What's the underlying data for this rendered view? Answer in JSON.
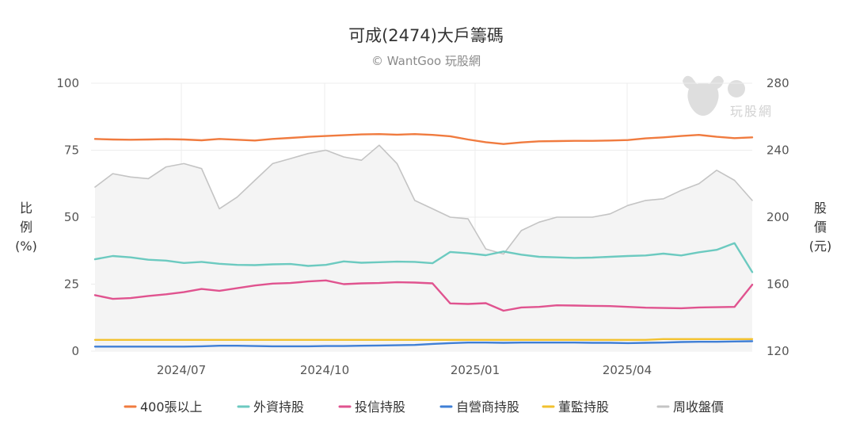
{
  "chart_data": {
    "type": "line",
    "title": "可成(2474)大戶籌碼",
    "subtitle": "© WantGoo 玩股網",
    "watermark": "玩股網",
    "x_tick_labels": [
      "2024/07",
      "2024/10",
      "2025/01",
      "2025/04"
    ],
    "y_left": {
      "label": "比例 (%)",
      "label_chars": [
        "比",
        "例",
        "(%)"
      ],
      "ticks": [
        "100",
        "75",
        "50",
        "25",
        "0"
      ],
      "range": [
        0,
        100
      ]
    },
    "y_right": {
      "label": "股價 (元)",
      "label_chars": [
        "股",
        "價",
        "(元)"
      ],
      "ticks": [
        "280",
        "240",
        "200",
        "160",
        "120"
      ],
      "range": [
        120,
        280
      ]
    },
    "grid": true,
    "legend_position": "bottom",
    "period": [
      "2024-05",
      "2025-06"
    ],
    "series": [
      {
        "name": "400張以上",
        "color": "#f07b3f",
        "axis": "left",
        "values": [
          79.2,
          79.0,
          78.9,
          79.0,
          79.1,
          79.0,
          78.7,
          79.2,
          78.9,
          78.6,
          79.2,
          79.6,
          80.0,
          80.3,
          80.6,
          80.9,
          81.0,
          80.8,
          81.0,
          80.7,
          80.2,
          79.0,
          78.0,
          77.3,
          77.9,
          78.3,
          78.4,
          78.5,
          78.5,
          78.6,
          78.8,
          79.4,
          79.8,
          80.3,
          80.7,
          80.0,
          79.5,
          79.8
        ]
      },
      {
        "name": "外資持股",
        "color": "#6ccac0",
        "axis": "left",
        "values": [
          34.3,
          35.5,
          35.0,
          34.1,
          33.8,
          32.9,
          33.3,
          32.6,
          32.2,
          32.1,
          32.4,
          32.5,
          31.8,
          32.2,
          33.5,
          33.0,
          33.2,
          33.4,
          33.3,
          32.8,
          37.0,
          36.5,
          35.8,
          37.2,
          36.0,
          35.2,
          35.0,
          34.8,
          34.9,
          35.2,
          35.5,
          35.7,
          36.4,
          35.7,
          36.9,
          37.8,
          40.3,
          29.5
        ]
      },
      {
        "name": "投信持股",
        "color": "#e0538f",
        "axis": "left",
        "values": [
          20.9,
          19.5,
          19.8,
          20.6,
          21.2,
          22.0,
          23.2,
          22.5,
          23.5,
          24.5,
          25.2,
          25.4,
          26.0,
          26.4,
          25.0,
          25.3,
          25.4,
          25.7,
          25.6,
          25.3,
          17.8,
          17.6,
          17.9,
          15.1,
          16.3,
          16.5,
          17.1,
          17.0,
          16.9,
          16.8,
          16.5,
          16.2,
          16.1,
          16.0,
          16.3,
          16.4,
          16.5,
          24.8
        ]
      },
      {
        "name": "自營商持股",
        "color": "#3f7fd6",
        "axis": "left",
        "values": [
          1.7,
          1.7,
          1.7,
          1.7,
          1.7,
          1.7,
          1.8,
          2.0,
          2.0,
          1.9,
          1.8,
          1.8,
          1.8,
          1.9,
          1.9,
          2.0,
          2.1,
          2.2,
          2.3,
          2.7,
          3.0,
          3.2,
          3.2,
          3.1,
          3.2,
          3.2,
          3.2,
          3.2,
          3.1,
          3.1,
          3.0,
          3.1,
          3.2,
          3.4,
          3.5,
          3.5,
          3.6,
          3.7
        ]
      },
      {
        "name": "董監持股",
        "color": "#f2c12e",
        "axis": "left",
        "values": [
          4.2,
          4.2,
          4.2,
          4.2,
          4.2,
          4.2,
          4.2,
          4.2,
          4.2,
          4.2,
          4.2,
          4.2,
          4.2,
          4.2,
          4.2,
          4.2,
          4.2,
          4.2,
          4.2,
          4.2,
          4.2,
          4.2,
          4.2,
          4.2,
          4.2,
          4.2,
          4.2,
          4.2,
          4.2,
          4.2,
          4.2,
          4.2,
          4.5,
          4.5,
          4.5,
          4.5,
          4.5,
          4.5
        ]
      },
      {
        "name": "周收盤價",
        "color": "#c4c4c4",
        "axis": "right",
        "fill": "#f4f4f4",
        "values": [
          218,
          226,
          224,
          223,
          230,
          232,
          229,
          205,
          212,
          222,
          232,
          235,
          238,
          240,
          236,
          234,
          243,
          232,
          210,
          205,
          200,
          199,
          181,
          178,
          192,
          197,
          200,
          200,
          200,
          202,
          207,
          210,
          211,
          216,
          220,
          228,
          222,
          210
        ]
      }
    ]
  }
}
